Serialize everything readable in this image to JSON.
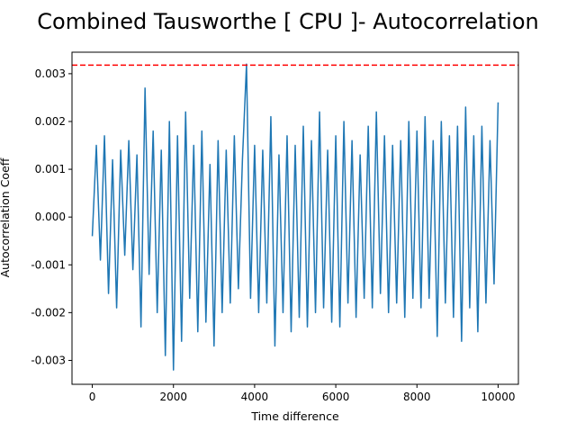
{
  "chart_data": {
    "type": "line",
    "title": "Combined Tausworthe [ CPU ]- Autocorrelation",
    "xlabel": "Time difference",
    "ylabel": "Autocorrelation Coeff",
    "xlim": [
      -500,
      10500
    ],
    "ylim": [
      -0.0035,
      0.00345
    ],
    "xticks": [
      0,
      2000,
      4000,
      6000,
      8000,
      10000
    ],
    "xtick_labels": [
      "0",
      "2000",
      "4000",
      "6000",
      "8000",
      "10000"
    ],
    "yticks": [
      -0.003,
      -0.002,
      -0.001,
      0.0,
      0.001,
      0.002,
      0.003
    ],
    "ytick_labels": [
      "-0.003",
      "-0.002",
      "-0.001",
      "0.000",
      "0.001",
      "0.002",
      "0.003"
    ],
    "grid": false,
    "colors": {
      "series": "#1f77b4",
      "threshold": "#ff0000"
    },
    "threshold": {
      "y": 0.00318,
      "style": "dashed"
    },
    "series": [
      {
        "x": [
          0,
          100,
          200,
          300,
          400,
          500,
          600,
          700,
          800,
          900,
          1000,
          1100,
          1200,
          1300,
          1400,
          1500,
          1600,
          1700,
          1800,
          1900,
          2000,
          2100,
          2200,
          2300,
          2400,
          2500,
          2600,
          2700,
          2800,
          2900,
          3000,
          3100,
          3200,
          3300,
          3400,
          3500,
          3600,
          3700,
          3800,
          3900,
          4000,
          4100,
          4200,
          4300,
          4400,
          4500,
          4600,
          4700,
          4800,
          4900,
          5000,
          5100,
          5200,
          5300,
          5400,
          5500,
          5600,
          5700,
          5800,
          5900,
          6000,
          6100,
          6200,
          6300,
          6400,
          6500,
          6600,
          6700,
          6800,
          6900,
          7000,
          7100,
          7200,
          7300,
          7400,
          7500,
          7600,
          7700,
          7800,
          7900,
          8000,
          8100,
          8200,
          8300,
          8400,
          8500,
          8600,
          8700,
          8800,
          8900,
          9000,
          9100,
          9200,
          9300,
          9400,
          9500,
          9600,
          9700,
          9800,
          9900,
          10000
        ],
        "values": [
          -0.0004,
          0.0015,
          -0.0009,
          0.0017,
          -0.0016,
          0.0012,
          -0.0019,
          0.0014,
          -0.0008,
          0.0016,
          -0.0011,
          0.0013,
          -0.0023,
          0.0027,
          -0.0012,
          0.0018,
          -0.002,
          0.0014,
          -0.0029,
          0.002,
          -0.0032,
          0.0017,
          -0.0026,
          0.0022,
          -0.0017,
          0.0015,
          -0.0024,
          0.0018,
          -0.0022,
          0.0011,
          -0.0027,
          0.0016,
          -0.002,
          0.0014,
          -0.0018,
          0.0017,
          -0.0015,
          0.0012,
          0.0032,
          -0.0017,
          0.0015,
          -0.002,
          0.0014,
          -0.0018,
          0.0021,
          -0.0027,
          0.0013,
          -0.002,
          0.0017,
          -0.0024,
          0.0015,
          -0.0021,
          0.0019,
          -0.0023,
          0.0016,
          -0.002,
          0.0022,
          -0.0019,
          0.0014,
          -0.0022,
          0.0017,
          -0.0023,
          0.002,
          -0.0018,
          0.0016,
          -0.0021,
          0.0013,
          -0.0017,
          0.0019,
          -0.0019,
          0.0022,
          -0.0016,
          0.0017,
          -0.002,
          0.0015,
          -0.0018,
          0.0016,
          -0.0021,
          0.002,
          -0.0017,
          0.0018,
          -0.0019,
          0.0021,
          -0.0017,
          0.0016,
          -0.0025,
          0.002,
          -0.0018,
          0.0017,
          -0.0021,
          0.0019,
          -0.0026,
          0.0023,
          -0.0019,
          0.0017,
          -0.0024,
          0.0019,
          -0.0018,
          0.0016,
          -0.0014,
          0.0024
        ]
      }
    ]
  }
}
